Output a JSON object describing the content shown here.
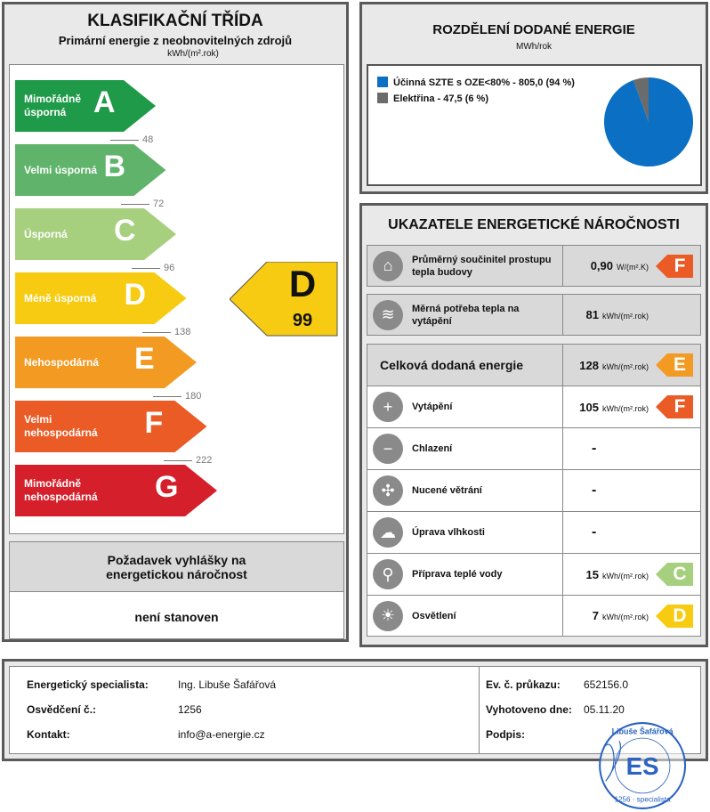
{
  "classification": {
    "title": "KLASIFIKAČNÍ TŘÍDA",
    "subtitle": "Primární energie z neobnovitelných zdrojů",
    "unit": "kWh/(m².rok)",
    "classes": [
      {
        "letter": "A",
        "label": "Mimořádně úsporná",
        "color": "#1e9a48",
        "threshold": "48"
      },
      {
        "letter": "B",
        "label": "Velmi úsporná",
        "color": "#5fb36b",
        "threshold": "72"
      },
      {
        "letter": "C",
        "label": "Úsporná",
        "color": "#a6cf7e",
        "threshold": "96"
      },
      {
        "letter": "D",
        "label": "Méně úsporná",
        "color": "#f6cb12",
        "threshold": "138"
      },
      {
        "letter": "E",
        "label": "Nehospodárná",
        "color": "#f29a22",
        "threshold": "180"
      },
      {
        "letter": "F",
        "label": "Velmi nehospodárná",
        "color": "#ea5b25",
        "threshold": "222"
      },
      {
        "letter": "G",
        "label": "Mimořádně nehospodárná",
        "color": "#d51f2b",
        "threshold": ""
      }
    ],
    "result": {
      "letter": "D",
      "value": "99",
      "color": "#f6cb12"
    },
    "requirement": {
      "title": "Požadavek vyhlášky na energetickou náročnost",
      "value": "není stanoven"
    }
  },
  "distribution": {
    "title": "ROZDĚLENÍ DODANÉ ENERGIE",
    "unit": "MWh/rok",
    "chart_data": {
      "type": "pie",
      "slices": [
        {
          "name": "Účinná SZTE s OZE<80% - 805,0 (94 %)",
          "value": 805.0,
          "percent": 94,
          "color": "#0b6fc3"
        },
        {
          "name": "Elektřina - 47,5 (6 %)",
          "value": 47.5,
          "percent": 6,
          "color": "#6b6b6b"
        }
      ],
      "legend": "top-left"
    }
  },
  "indicators": {
    "title": "UKAZATELE ENERGETICKÉ NÁROČNOSTI",
    "rows": [
      {
        "icon": "house-icon",
        "glyph": "⌂",
        "label": "Průměrný součinitel prostupu tepla budovy",
        "value": "0,90",
        "unit": "W/(m².K)",
        "class": "F",
        "color": "#ea5b25",
        "gray": true
      },
      {
        "icon": "heat-demand-icon",
        "glyph": "≋",
        "label": "Měrná potřeba tepla na vytápění",
        "value": "81",
        "unit": "kWh/(m².rok)",
        "class": "",
        "gray": true
      },
      {
        "icon": "",
        "glyph": "",
        "label": "Celková dodaná energie",
        "value": "128",
        "unit": "kWh/(m².rok)",
        "class": "E",
        "color": "#f29a22",
        "gray": true
      },
      {
        "icon": "heating-thermometer-icon",
        "glyph": "+",
        "label": "Vytápění",
        "value": "105",
        "unit": "kWh/(m².rok)",
        "class": "F",
        "color": "#ea5b25"
      },
      {
        "icon": "cooling-thermometer-icon",
        "glyph": "−",
        "label": "Chlazení",
        "value": "-"
      },
      {
        "icon": "fan-icon",
        "glyph": "✣",
        "label": "Nucené větrání",
        "value": "-"
      },
      {
        "icon": "humidity-icon",
        "glyph": "☁",
        "label": "Úprava vlhkosti",
        "value": "-"
      },
      {
        "icon": "water-tap-icon",
        "glyph": "⚲",
        "label": "Příprava teplé vody",
        "value": "15",
        "unit": "kWh/(m².rok)",
        "class": "C",
        "color": "#a6cf7e"
      },
      {
        "icon": "light-bulb-icon",
        "glyph": "☀",
        "label": "Osvětlení",
        "value": "7",
        "unit": "kWh/(m².rok)",
        "class": "D",
        "color": "#f6cb12"
      }
    ]
  },
  "footer": {
    "specialist_label": "Energetický specialista:",
    "specialist": "Ing. Libuše Šafářová",
    "cert_label": "Osvědčení č.:",
    "cert": "1256",
    "contact_label": "Kontakt:",
    "contact": "info@a-energie.cz",
    "ev_label": "Ev. č. průkazu:",
    "ev": "652156.0",
    "date_label": "Vyhotoveno dne:",
    "date": "05.11.20",
    "sign_label": "Podpis:",
    "stamp": {
      "text": "Ing. Libuše Šafářová energetický specialista 1256",
      "color": "#2a63c0"
    }
  }
}
